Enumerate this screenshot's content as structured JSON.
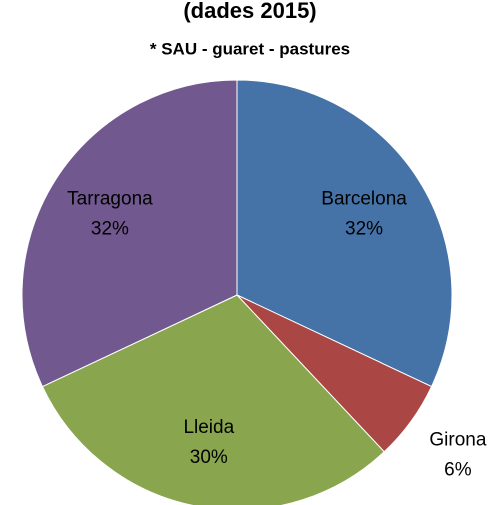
{
  "chart_data": {
    "type": "pie",
    "title": "(dades 2015)",
    "subtitle": "* SAU - guaret - pastures",
    "categories": [
      "Barcelona",
      "Girona",
      "Lleida",
      "Tarragona"
    ],
    "values": [
      32,
      6,
      30,
      32
    ],
    "value_labels": [
      "32%",
      "6%",
      "30%",
      "32%"
    ],
    "colors": [
      "#4572a7",
      "#aa4643",
      "#89a54e",
      "#71588f"
    ]
  }
}
